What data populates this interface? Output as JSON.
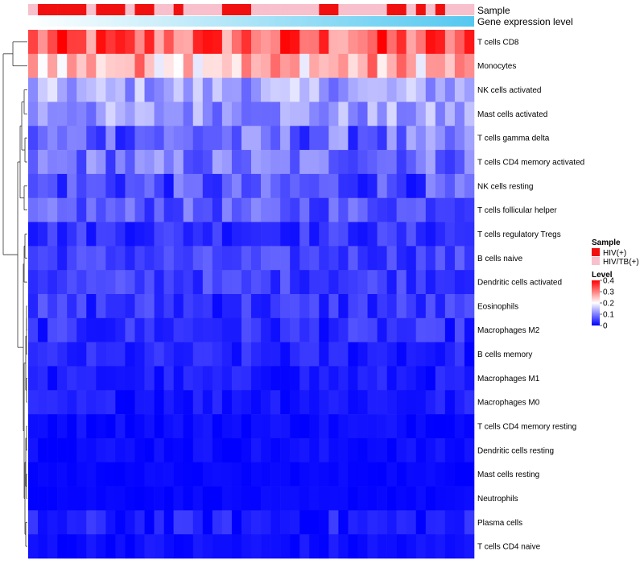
{
  "chart_data": {
    "type": "heatmap",
    "title": "",
    "annotation_labels": {
      "sample": "Sample",
      "gene_expression": "Gene expression level"
    },
    "legend": {
      "sample": {
        "title": "Sample",
        "entries": [
          {
            "label": "HIV(+)",
            "color": "#f01010"
          },
          {
            "label": "HIV/TB(+)",
            "color": "#f8c0cc"
          }
        ]
      },
      "level": {
        "title": "Level",
        "ticks": [
          "0.4",
          "0.3",
          "0.2",
          "0.1",
          "0"
        ],
        "tick_values": [
          0.4,
          0.3,
          0.2,
          0.1,
          0
        ]
      },
      "placement": "right"
    },
    "color_scale": {
      "min": 0,
      "mid": 0.2,
      "max": 0.4,
      "low": "#0000ff",
      "mid_color": "#ffffff",
      "high": "#ff0000"
    },
    "columns": 46,
    "sample_groups": [
      1,
      0,
      0,
      0,
      0,
      0,
      1,
      0,
      0,
      0,
      1,
      0,
      0,
      1,
      1,
      0,
      1,
      1,
      1,
      1,
      0,
      0,
      0,
      1,
      1,
      1,
      1,
      1,
      1,
      1,
      0,
      0,
      1,
      1,
      1,
      1,
      1,
      0,
      0,
      1,
      0,
      1,
      0,
      1,
      1,
      1
    ],
    "gene_expression_gradient": {
      "start": "#ffffff",
      "end": "#55c8f0"
    },
    "rows": [
      "T cells CD8",
      "Monocytes",
      "NK cells activated",
      "Mast cells activated",
      "T cells gamma delta",
      "T cells CD4 memory activated",
      "NK cells resting",
      "T cells follicular helper",
      "T cells regulatory  Tregs",
      "B cells naive",
      "Dendritic cells activated",
      "Eosinophils",
      "Macrophages M2",
      "B cells memory",
      "Macrophages M1",
      "Macrophages M0",
      "T cells CD4 memory resting",
      "Dendritic cells resting",
      "Mast cells resting",
      "Neutrophils",
      "Plasma cells",
      "T cells CD4 naive"
    ],
    "row_means": [
      0.32,
      0.26,
      0.13,
      0.12,
      0.08,
      0.09,
      0.06,
      0.07,
      0.04,
      0.05,
      0.05,
      0.04,
      0.035,
      0.025,
      0.02,
      0.02,
      0.01,
      0.01,
      0.005,
      0.005,
      0.02,
      0.01
    ],
    "row_spread": [
      0.09,
      0.08,
      0.05,
      0.05,
      0.06,
      0.05,
      0.05,
      0.04,
      0.03,
      0.03,
      0.03,
      0.035,
      0.03,
      0.025,
      0.02,
      0.02,
      0.012,
      0.012,
      0.006,
      0.006,
      0.03,
      0.015
    ],
    "dendrogram": "hierarchical clustering of rows (left)"
  }
}
